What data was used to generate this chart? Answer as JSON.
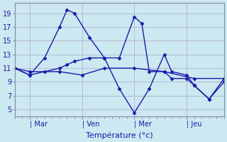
{
  "background_color": "#cce8f0",
  "grid_color": "#aaaacc",
  "line_color": "#1a1aaa",
  "marker": "D",
  "markersize": 2.5,
  "linewidth": 1.0,
  "xlabel": "Température (°c)",
  "xlabel_fontsize": 8,
  "yticks": [
    5,
    7,
    9,
    11,
    13,
    15,
    17,
    19
  ],
  "xtick_labels": [
    "| Mar",
    "| Ven",
    "| Mer",
    "| Jeu"
  ],
  "xtick_positions": [
    2,
    9,
    16,
    23
  ],
  "ylim": [
    4.0,
    20.5
  ],
  "xlim": [
    0,
    28
  ],
  "tick_fontsize": 7,
  "series": [
    {
      "x": [
        0,
        2,
        4,
        6,
        7,
        8,
        10,
        12,
        14,
        16,
        17,
        18,
        20,
        21,
        23,
        24,
        26,
        28
      ],
      "y": [
        11,
        10,
        12.5,
        17,
        19.5,
        19,
        15.5,
        12.5,
        12.5,
        18.5,
        17.5,
        10.5,
        10.5,
        9.5,
        9.5,
        8.5,
        6.5,
        9.0
      ]
    },
    {
      "x": [
        0,
        2,
        4,
        6,
        7,
        8,
        10,
        12,
        14,
        16,
        18,
        20,
        21,
        23,
        24,
        26,
        28
      ],
      "y": [
        11,
        10,
        10.5,
        11,
        11.5,
        12,
        12.5,
        12.5,
        8.0,
        4.5,
        8.0,
        13.0,
        10.5,
        10.0,
        8.5,
        6.5,
        9.5
      ]
    },
    {
      "x": [
        0,
        2,
        6,
        9,
        12,
        16,
        20,
        24,
        28
      ],
      "y": [
        11,
        10.5,
        10.5,
        10.0,
        11.0,
        11.0,
        10.5,
        9.5,
        9.5
      ]
    }
  ]
}
